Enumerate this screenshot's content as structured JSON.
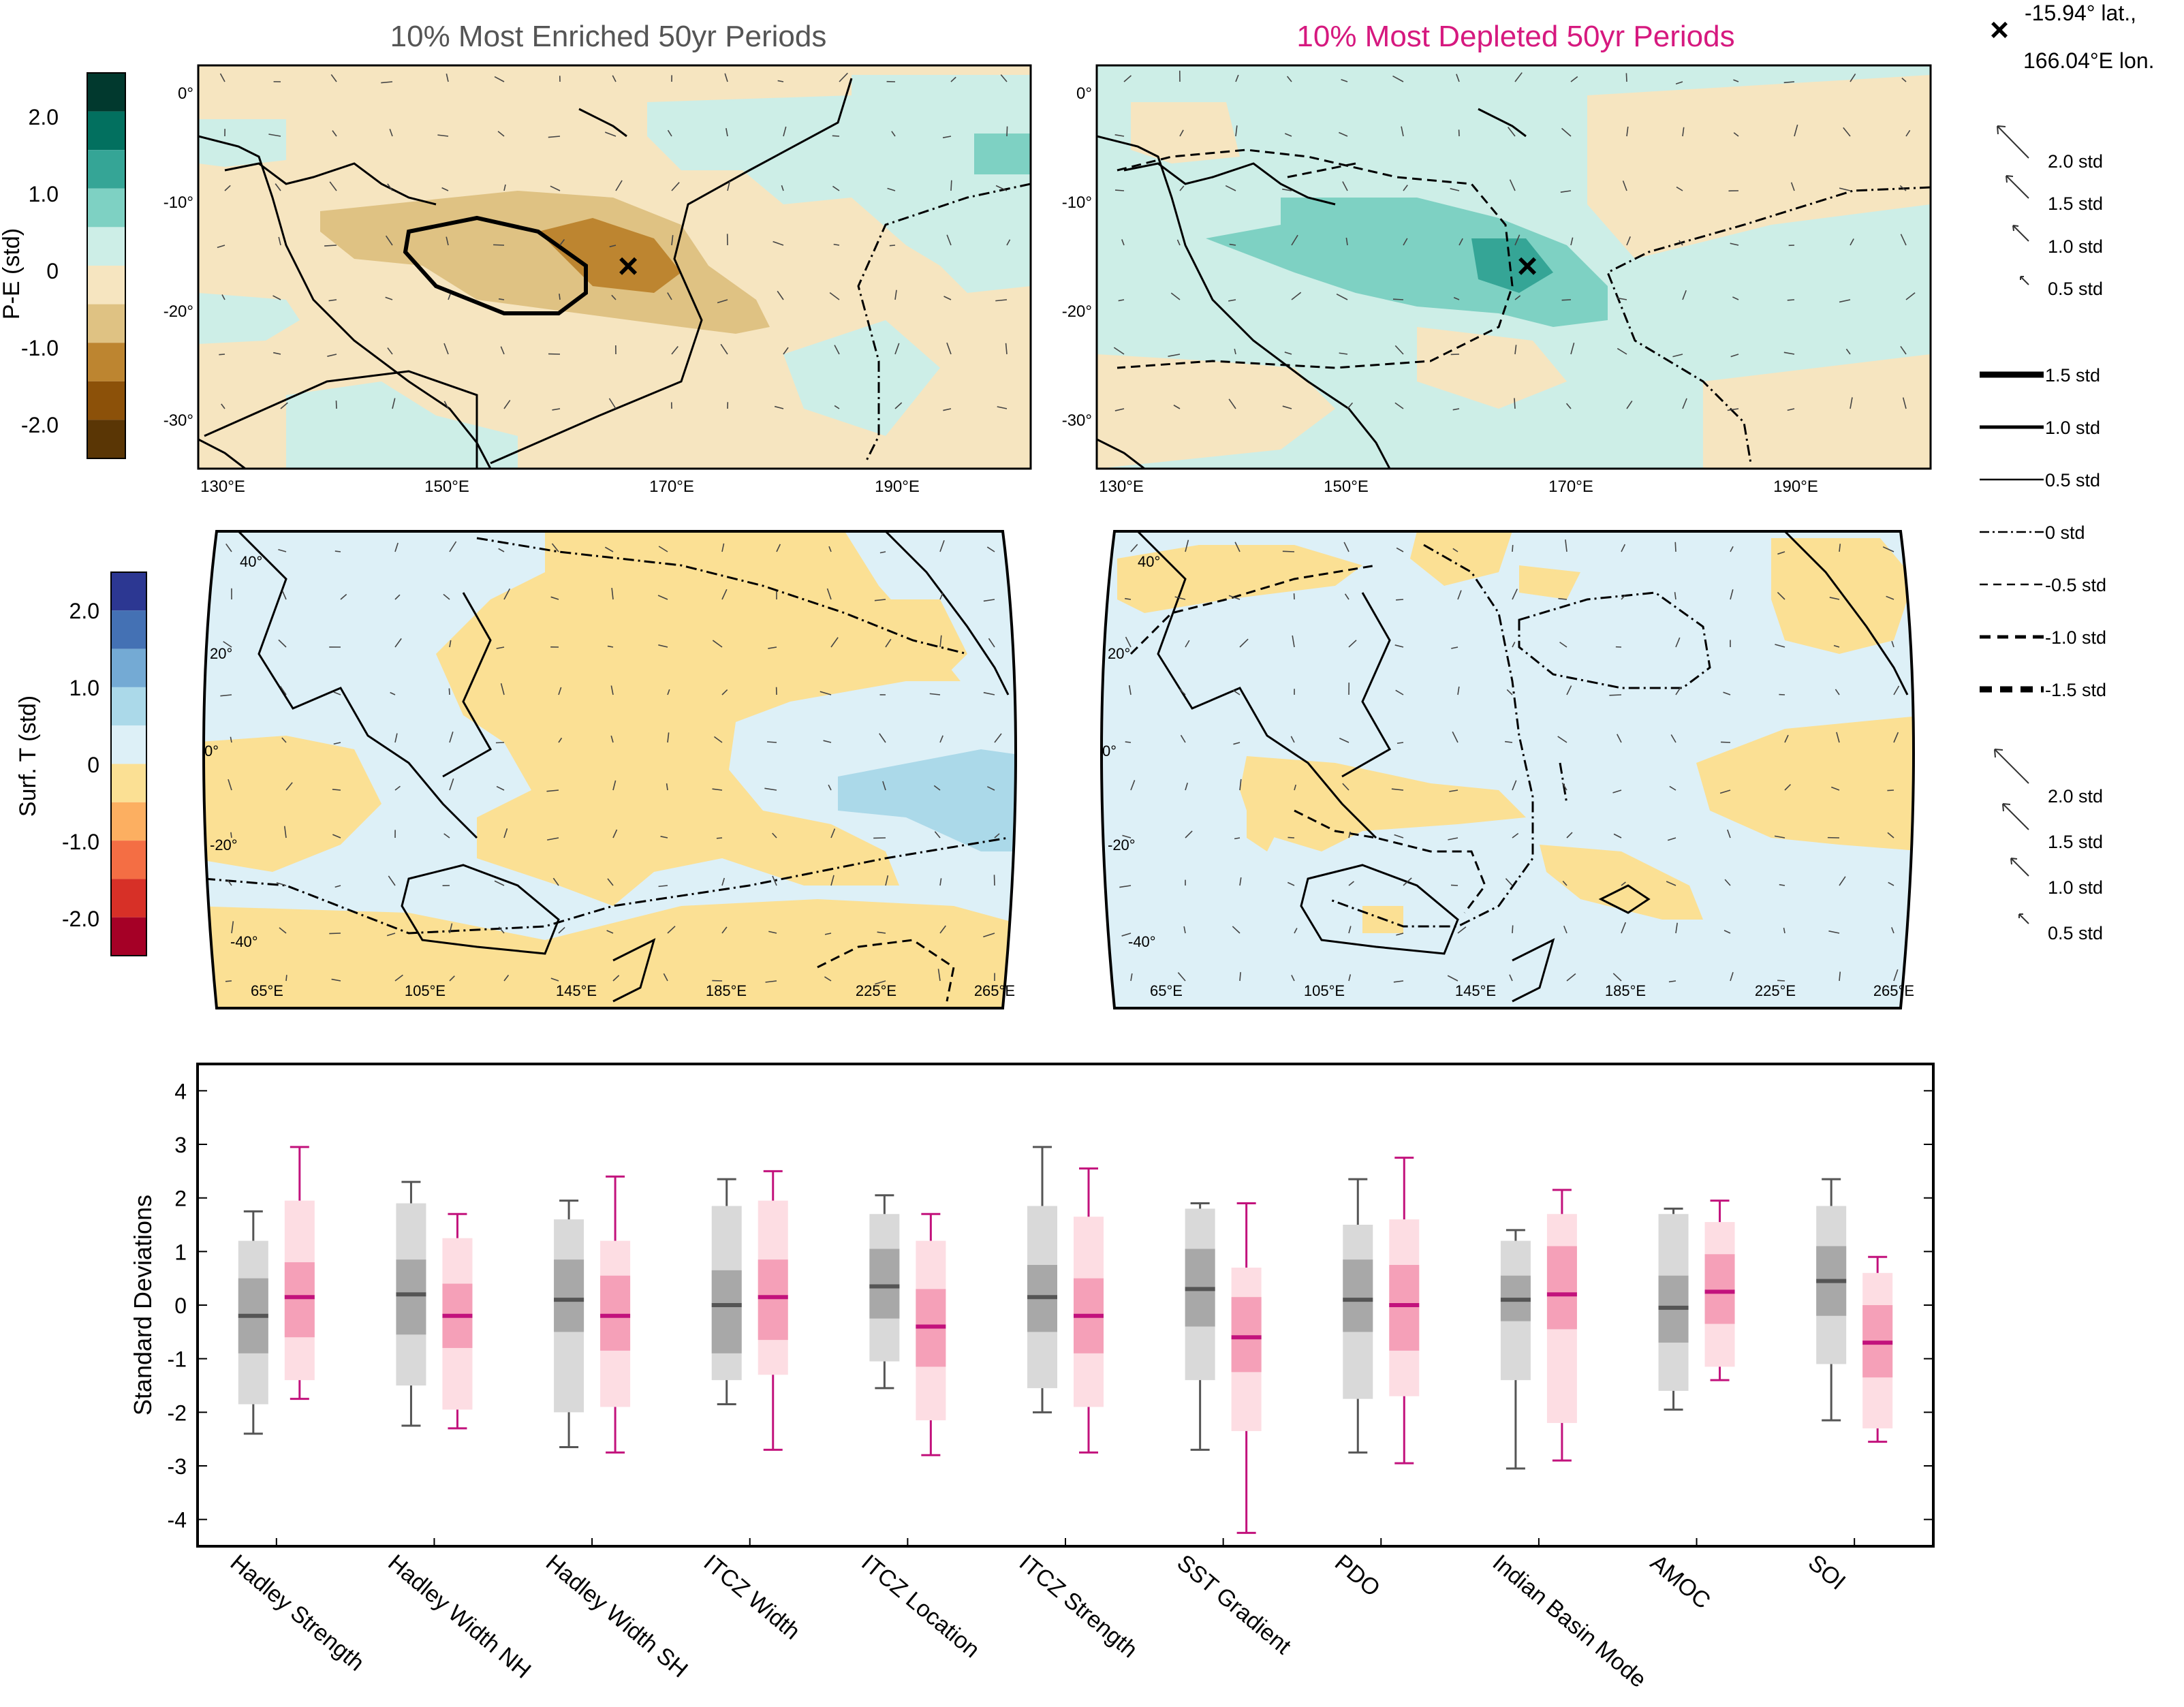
{
  "header": {
    "enriched_title": "10% Most Enriched 50yr Periods",
    "depleted_title": "10% Most Depleted 50yr Periods",
    "site_marker": "×",
    "site_line1": "-15.94° lat.,",
    "site_line2": "166.04°E lon."
  },
  "colors": {
    "enriched_title": "#555555",
    "depleted_title": "#d6197f",
    "enriched_box_outer": "#d9d9d9",
    "enriched_box_inner": "#a8a8a8",
    "enriched_median": "#555555",
    "depleted_box_outer": "#fddde3",
    "depleted_box_inner": "#f5a0b8",
    "depleted_median": "#c2127c",
    "land_tan": "#f6e5c0",
    "wet_teal": "#cdeee7",
    "warm_yellow": "#fbe094",
    "cool_blue": "#ddf0f7"
  },
  "pe_colorbar": {
    "label": "P-E (std)",
    "ticks": [
      "2.0",
      "1.0",
      "0",
      "-1.0",
      "-2.0"
    ],
    "colors": [
      "#01392e",
      "#02705f",
      "#35a596",
      "#7ed1c3",
      "#cdeee7",
      "#f6e5c0",
      "#dfc283",
      "#bd8530",
      "#8c5109",
      "#5a3605"
    ]
  },
  "ts_colorbar": {
    "label": "Surf. T (std)",
    "ticks": [
      "2.0",
      "1.0",
      "0",
      "-1.0",
      "-2.0"
    ],
    "colors": [
      "#2c3792",
      "#4471b4",
      "#74aad4",
      "#abd9e9",
      "#ddf0f7",
      "#fbe094",
      "#fcaf61",
      "#f46e44",
      "#d73027",
      "#a50026"
    ]
  },
  "pe_maps": {
    "lat_ticks": [
      "0°",
      "-10°",
      "-20°",
      "-30°"
    ],
    "lon_ticks": [
      "130°E",
      "150°E",
      "170°E",
      "190°E"
    ]
  },
  "ts_maps": {
    "lat_ticks": [
      "40°",
      "20°",
      "0°",
      "-20°",
      "-40°"
    ],
    "lon_ticks": [
      "65°E",
      "105°E",
      "145°E",
      "185°E",
      "225°E",
      "265°E"
    ]
  },
  "legend": {
    "arrows_upper": [
      "2.0 std",
      "1.5 std",
      "1.0 std",
      "0.5 std"
    ],
    "contours": [
      "1.5 std",
      "1.0 std",
      "0.5 std",
      "0 std",
      "-0.5 std",
      "-1.0 std",
      "-1.5 std"
    ],
    "arrows_lower": [
      "2.0 std",
      "1.5 std",
      "1.0 std",
      "0.5 std"
    ]
  },
  "chart_data": {
    "type": "box",
    "ylabel": "Standard Deviations",
    "ylim": [
      -4.5,
      4.5
    ],
    "yticks": [
      "4",
      "3",
      "2",
      "1",
      "0",
      "-1",
      "-2",
      "-3",
      "-4"
    ],
    "categories": [
      "Hadley Strength",
      "Hadley Width NH",
      "Hadley Width SH",
      "ITCZ Width",
      "ITCZ Location",
      "ITCZ Strength",
      "SST Gradient",
      "PDO",
      "Indian Basin Mode",
      "AMOC",
      "SOI"
    ],
    "series": [
      {
        "group": "10% Most Enriched 50yr Periods",
        "boxes": [
          {
            "min": -2.4,
            "p10": -1.85,
            "q1": -0.9,
            "median": -0.2,
            "q3": 0.5,
            "p90": 1.2,
            "max": 1.75
          },
          {
            "min": -2.25,
            "p10": -1.5,
            "q1": -0.55,
            "median": 0.2,
            "q3": 0.85,
            "p90": 1.9,
            "max": 2.3
          },
          {
            "min": -2.65,
            "p10": -2.0,
            "q1": -0.5,
            "median": 0.1,
            "q3": 0.85,
            "p90": 1.6,
            "max": 1.95
          },
          {
            "min": -1.85,
            "p10": -1.4,
            "q1": -0.9,
            "median": 0.0,
            "q3": 0.65,
            "p90": 1.85,
            "max": 2.35
          },
          {
            "min": -1.55,
            "p10": -1.05,
            "q1": -0.25,
            "median": 0.35,
            "q3": 1.05,
            "p90": 1.7,
            "max": 2.05
          },
          {
            "min": -2.0,
            "p10": -1.55,
            "q1": -0.5,
            "median": 0.15,
            "q3": 0.75,
            "p90": 1.85,
            "max": 2.95
          },
          {
            "min": -2.7,
            "p10": -1.4,
            "q1": -0.4,
            "median": 0.3,
            "q3": 1.05,
            "p90": 1.8,
            "max": 1.9
          },
          {
            "min": -2.75,
            "p10": -1.75,
            "q1": -0.5,
            "median": 0.1,
            "q3": 0.85,
            "p90": 1.5,
            "max": 2.35
          },
          {
            "min": -3.05,
            "p10": -1.4,
            "q1": -0.3,
            "median": 0.1,
            "q3": 0.55,
            "p90": 1.2,
            "max": 1.4
          },
          {
            "min": -1.95,
            "p10": -1.6,
            "q1": -0.7,
            "median": -0.05,
            "q3": 0.55,
            "p90": 1.7,
            "max": 1.8
          },
          {
            "min": -2.15,
            "p10": -1.1,
            "q1": -0.2,
            "median": 0.45,
            "q3": 1.1,
            "p90": 1.85,
            "max": 2.35
          }
        ]
      },
      {
        "group": "10% Most Depleted 50yr Periods",
        "boxes": [
          {
            "min": -1.75,
            "p10": -1.4,
            "q1": -0.6,
            "median": 0.15,
            "q3": 0.8,
            "p90": 1.95,
            "max": 2.95
          },
          {
            "min": -2.3,
            "p10": -1.95,
            "q1": -0.8,
            "median": -0.2,
            "q3": 0.4,
            "p90": 1.25,
            "max": 1.7
          },
          {
            "min": -2.75,
            "p10": -1.9,
            "q1": -0.85,
            "median": -0.2,
            "q3": 0.55,
            "p90": 1.2,
            "max": 2.4
          },
          {
            "min": -2.7,
            "p10": -1.3,
            "q1": -0.65,
            "median": 0.15,
            "q3": 0.85,
            "p90": 1.95,
            "max": 2.5
          },
          {
            "min": -2.8,
            "p10": -2.15,
            "q1": -1.15,
            "median": -0.4,
            "q3": 0.3,
            "p90": 1.2,
            "max": 1.7
          },
          {
            "min": -2.75,
            "p10": -1.9,
            "q1": -0.9,
            "median": -0.2,
            "q3": 0.5,
            "p90": 1.65,
            "max": 2.55
          },
          {
            "min": -4.25,
            "p10": -2.35,
            "q1": -1.25,
            "median": -0.6,
            "q3": 0.15,
            "p90": 0.7,
            "max": 1.9
          },
          {
            "min": -2.95,
            "p10": -1.7,
            "q1": -0.85,
            "median": 0.0,
            "q3": 0.75,
            "p90": 1.6,
            "max": 2.75
          },
          {
            "min": -2.9,
            "p10": -2.2,
            "q1": -0.45,
            "median": 0.2,
            "q3": 1.1,
            "p90": 1.7,
            "max": 2.15
          },
          {
            "min": -1.4,
            "p10": -1.15,
            "q1": -0.35,
            "median": 0.25,
            "q3": 0.95,
            "p90": 1.55,
            "max": 1.95
          },
          {
            "min": -2.55,
            "p10": -2.3,
            "q1": -1.35,
            "median": -0.7,
            "q3": 0.0,
            "p90": 0.6,
            "max": 0.9
          }
        ]
      }
    ]
  }
}
